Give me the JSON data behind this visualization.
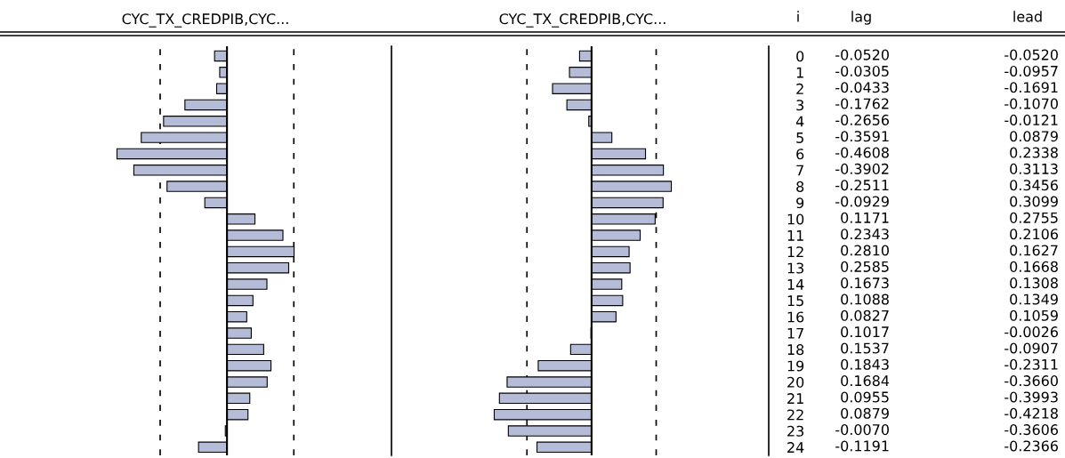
{
  "chart_data": [
    {
      "type": "bar",
      "orientation": "horizontal",
      "title": "CYC_TX_CREDPIB,CYC...",
      "categories": [
        "0",
        "1",
        "2",
        "3",
        "4",
        "5",
        "6",
        "7",
        "8",
        "9",
        "10",
        "11",
        "12",
        "13",
        "14",
        "15",
        "16",
        "17",
        "18",
        "19",
        "20",
        "21",
        "22",
        "23",
        "24"
      ],
      "values": [
        -0.052,
        -0.0305,
        -0.0433,
        -0.1762,
        -0.2656,
        -0.3591,
        -0.4608,
        -0.3902,
        -0.2511,
        -0.0929,
        0.1171,
        0.2343,
        0.281,
        0.2585,
        0.1673,
        0.1088,
        0.0827,
        0.1017,
        0.1537,
        0.1843,
        0.1684,
        0.0955,
        0.0879,
        -0.007,
        -0.1191
      ],
      "value_labels": [
        "-0.0520",
        "-0.0305",
        "-0.0433",
        "-0.1762",
        "-0.2656",
        "-0.3591",
        "-0.4608",
        "-0.3902",
        "-0.2511",
        "-0.0929",
        "0.1171",
        "0.2343",
        "0.2810",
        "0.2585",
        "0.1673",
        "0.1088",
        "0.0827",
        "0.1017",
        "0.1537",
        "0.1843",
        "0.1684",
        "0.0955",
        "0.0879",
        "-0.0070",
        "-0.1191"
      ],
      "color": "#b4bcd8",
      "tick_labels": false,
      "grid": false,
      "legend": false,
      "ref_lines": [
        {
          "axis": "x",
          "value": -0.28,
          "line_style": "dashed"
        },
        {
          "axis": "x",
          "value": 0.28,
          "line_style": "dashed"
        }
      ],
      "annotations": [
        "lag"
      ]
    },
    {
      "type": "bar",
      "orientation": "horizontal",
      "title": "CYC_TX_CREDPIB,CYC...",
      "categories": [
        "0",
        "1",
        "2",
        "3",
        "4",
        "5",
        "6",
        "7",
        "8",
        "9",
        "10",
        "11",
        "12",
        "13",
        "14",
        "15",
        "16",
        "17",
        "18",
        "19",
        "20",
        "21",
        "22",
        "23",
        "24"
      ],
      "values": [
        -0.052,
        -0.0957,
        -0.1691,
        -0.107,
        -0.0121,
        0.0879,
        0.2338,
        0.3113,
        0.3456,
        0.3099,
        0.2755,
        0.2106,
        0.1627,
        0.1668,
        0.1308,
        0.1349,
        0.1059,
        -0.0026,
        -0.0907,
        -0.2311,
        -0.366,
        -0.3993,
        -0.4218,
        -0.3606,
        -0.2366
      ],
      "value_labels": [
        "-0.0520",
        "-0.0957",
        "-0.1691",
        "-0.1070",
        "-0.0121",
        "0.0879",
        "0.2338",
        "0.3113",
        "0.3456",
        "0.3099",
        "0.2755",
        "0.2106",
        "0.1627",
        "0.1668",
        "0.1308",
        "0.1349",
        "0.1059",
        "-0.0026",
        "-0.0907",
        "-0.2311",
        "-0.3660",
        "-0.3993",
        "-0.4218",
        "-0.3606",
        "-0.2366"
      ],
      "color": "#b4bcd8",
      "grid": false,
      "legend": false,
      "ref_lines": [
        {
          "axis": "x",
          "value": -0.28,
          "line_style": "dashed"
        },
        {
          "axis": "x",
          "value": 0.28,
          "line_style": "dashed"
        }
      ],
      "annotations": [
        "i",
        "lead"
      ]
    }
  ]
}
